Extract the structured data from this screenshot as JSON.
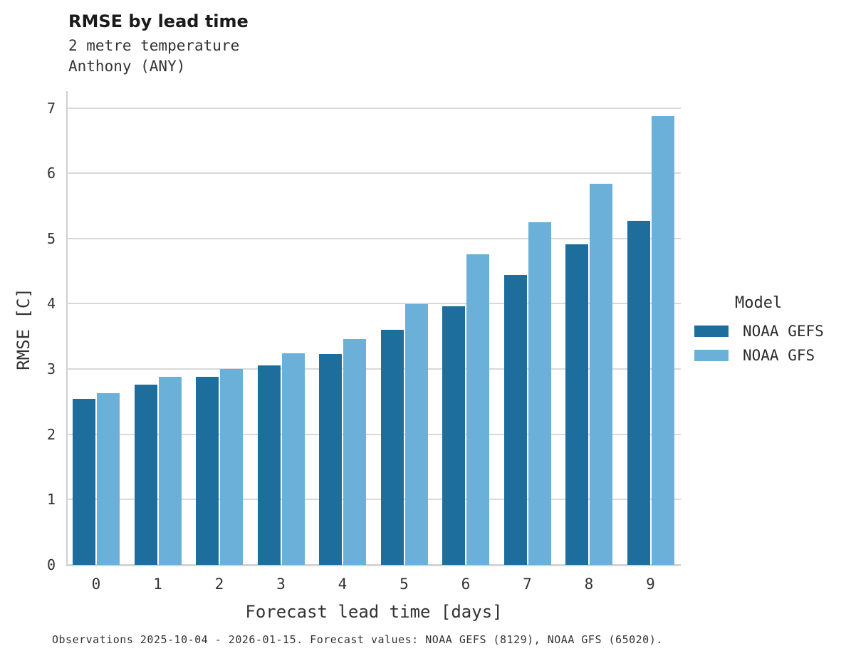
{
  "header": {
    "title": "RMSE by lead time",
    "subtitle_line1": "2 metre temperature",
    "subtitle_line2": "Anthony (ANY)"
  },
  "axes": {
    "x_label": "Forecast lead time [days]",
    "y_label": "RMSE [C]",
    "y_ticks": [
      0,
      1,
      2,
      3,
      4,
      5,
      6,
      7
    ],
    "x_ticks": [
      "0",
      "1",
      "2",
      "3",
      "4",
      "5",
      "6",
      "7",
      "8",
      "9"
    ]
  },
  "legend": {
    "title": "Model"
  },
  "footer": {
    "caption": "Observations 2025-10-04 - 2026-01-15. Forecast values: NOAA GEFS (8129), NOAA GFS (65020)."
  },
  "colors": {
    "noaa_gefs": "#1d6e9c",
    "noaa_gfs": "#6bb0d8",
    "gridline": "#d9d9d9",
    "text": "#333333"
  },
  "chart_data": {
    "type": "bar",
    "title": "RMSE by lead time",
    "subtitle": [
      "2 metre temperature",
      "Anthony (ANY)"
    ],
    "xlabel": "Forecast lead time [days]",
    "ylabel": "RMSE [C]",
    "ylim": [
      0,
      7
    ],
    "grid": "horizontal",
    "legend_position": "right",
    "legend_title": "Model",
    "categories": [
      "0",
      "1",
      "2",
      "3",
      "4",
      "5",
      "6",
      "7",
      "8",
      "9"
    ],
    "series": [
      {
        "name": "NOAA GEFS",
        "color": "#1d6e9c",
        "values": [
          2.54,
          2.76,
          2.88,
          3.06,
          3.23,
          3.6,
          3.96,
          4.44,
          4.91,
          5.27
        ]
      },
      {
        "name": "NOAA GFS",
        "color": "#6bb0d8",
        "values": [
          2.63,
          2.88,
          3.0,
          3.24,
          3.46,
          3.99,
          4.76,
          5.25,
          5.84,
          6.87
        ]
      }
    ]
  }
}
